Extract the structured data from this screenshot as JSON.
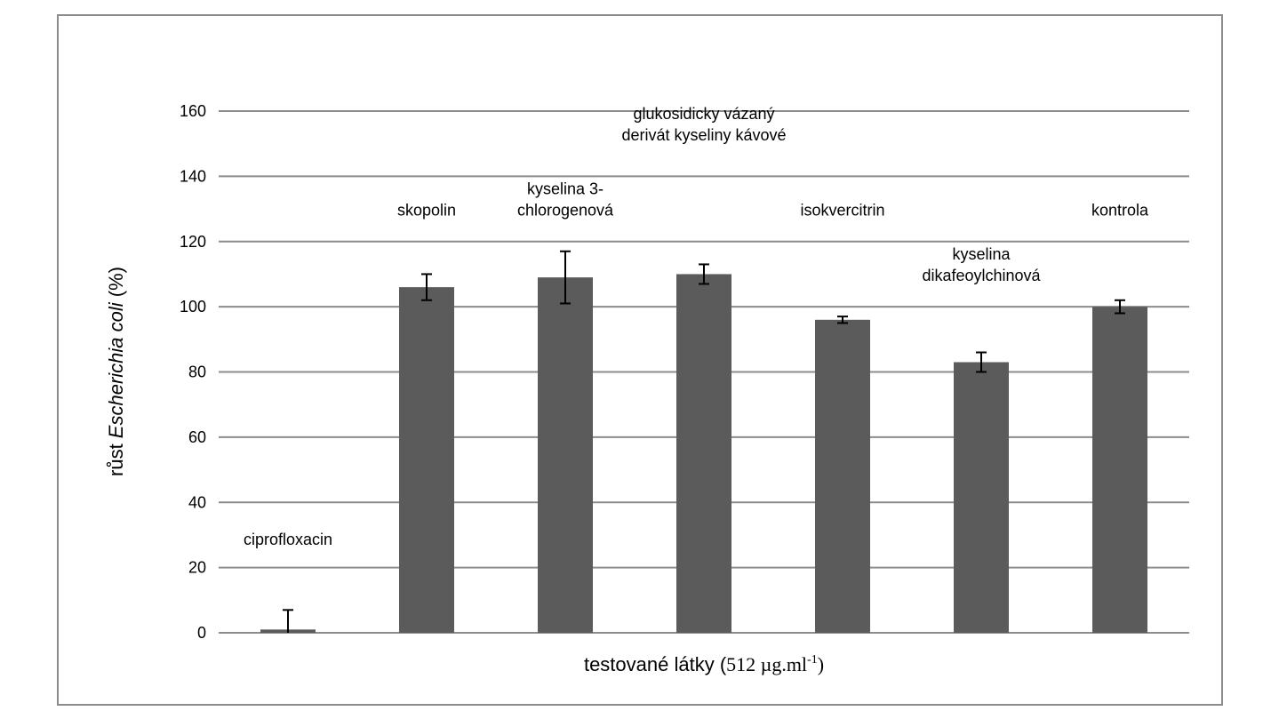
{
  "chart_data": {
    "type": "bar",
    "categories": [
      [
        "ciprofloxacin"
      ],
      [
        "skopolin"
      ],
      [
        "kyselina 3-",
        "chlorogenová"
      ],
      [
        "glukosidicky vázaný",
        "derivát kyseliny kávové"
      ],
      [
        "isokvercitrin"
      ],
      [
        "kyselina",
        "dikafeoylchinová"
      ],
      [
        "kontrola"
      ]
    ],
    "values": [
      1,
      106,
      109,
      110,
      96,
      83,
      100
    ],
    "errors": [
      6,
      4,
      8,
      3,
      1,
      3,
      2
    ],
    "label_y": [
      27,
      128,
      128,
      151,
      128,
      108,
      128
    ],
    "ylim": [
      0,
      160
    ],
    "yticks": [
      0,
      20,
      40,
      60,
      80,
      100,
      120,
      140,
      160
    ],
    "ylabel": {
      "prefix": "růst ",
      "italic": "Escherichia coli",
      "suffix": " (%)"
    },
    "xlabel": {
      "main": "testované látky  (",
      "unit": "512 µg.ml",
      "sup": "-1",
      "close": ")"
    },
    "grid": true,
    "legend": "none",
    "colors": {
      "bar": "#5b5b5b",
      "grid": "#8c8c8c",
      "error": "#000000"
    }
  }
}
